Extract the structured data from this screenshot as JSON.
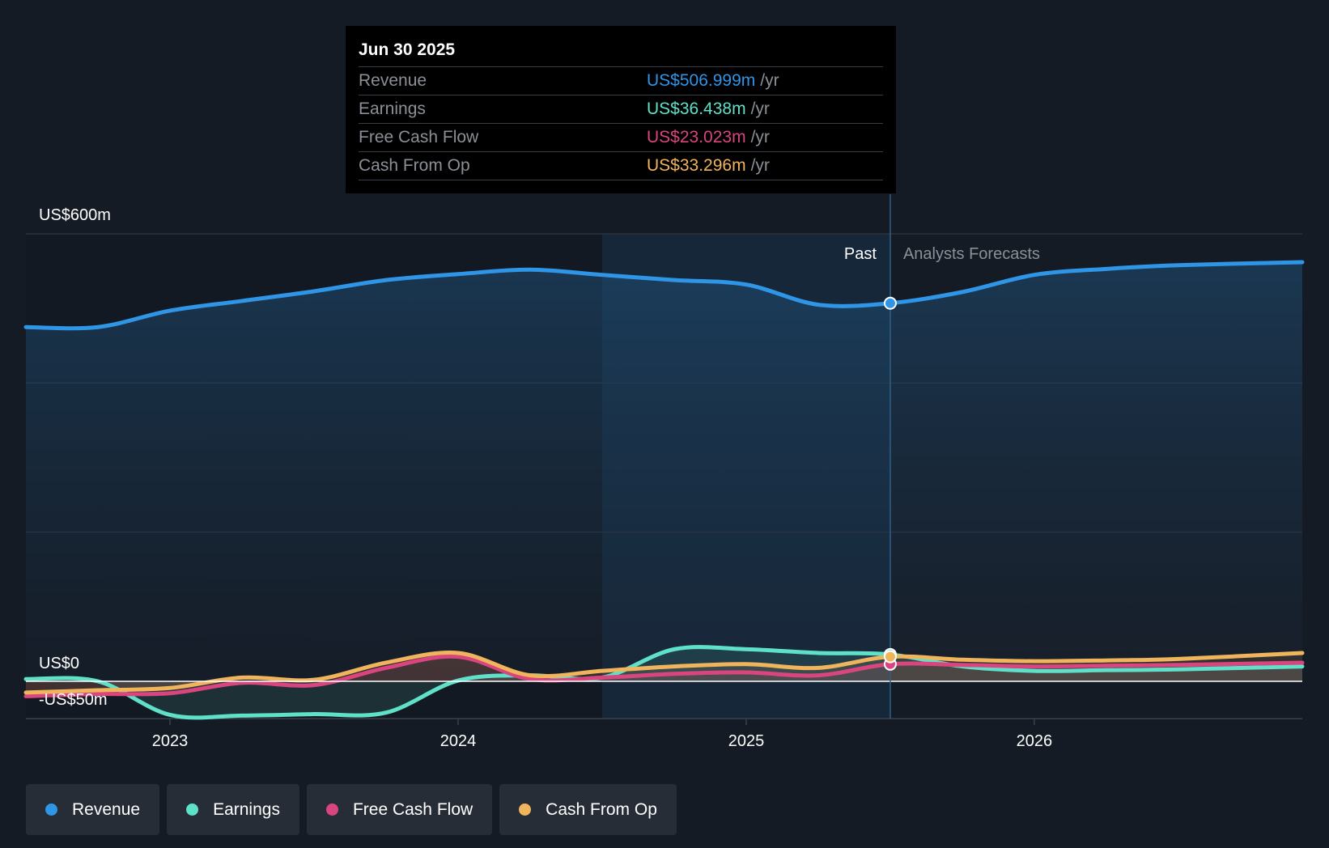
{
  "tooltip": {
    "date": "Jun 30 2025",
    "rows": [
      {
        "label": "Revenue",
        "value": "US$506.999m",
        "unit": "/yr",
        "color": "#2f95e6"
      },
      {
        "label": "Earnings",
        "value": "US$36.438m",
        "unit": "/yr",
        "color": "#5fe0c8"
      },
      {
        "label": "Free Cash Flow",
        "value": "US$23.023m",
        "unit": "/yr",
        "color": "#d9467f"
      },
      {
        "label": "Cash From Op",
        "value": "US$33.296m",
        "unit": "/yr",
        "color": "#f0b45d"
      }
    ]
  },
  "legend": [
    {
      "label": "Revenue",
      "color": "#2f95e6"
    },
    {
      "label": "Earnings",
      "color": "#5fe0c8"
    },
    {
      "label": "Free Cash Flow",
      "color": "#d9467f"
    },
    {
      "label": "Cash From Op",
      "color": "#f0b45d"
    }
  ],
  "chart_data": {
    "type": "line",
    "title": "",
    "xlabel": "",
    "ylabel": "",
    "xlim": [
      2022.5,
      2026.93
    ],
    "ylim": [
      -50,
      600
    ],
    "y_tick_labels": [
      {
        "value": 600,
        "label": "US$600m"
      },
      {
        "value": 0,
        "label": "US$0"
      },
      {
        "value": -50,
        "label": "-US$50m"
      }
    ],
    "x_ticks": [
      {
        "value": 2023.0,
        "label": "2023"
      },
      {
        "value": 2024.0,
        "label": "2024"
      },
      {
        "value": 2025.0,
        "label": "2025"
      },
      {
        "value": 2026.0,
        "label": "2026"
      }
    ],
    "highlight_range": [
      2024.5,
      2025.5
    ],
    "divider_x": 2025.5,
    "past_label": "Past",
    "forecast_label": "Analysts Forecasts",
    "series": [
      {
        "name": "Revenue",
        "color": "#2f95e6",
        "past_until": 2025.5,
        "x": [
          2022.5,
          2022.75,
          2023.0,
          2023.25,
          2023.5,
          2023.75,
          2024.0,
          2024.25,
          2024.5,
          2024.75,
          2025.0,
          2025.25,
          2025.5,
          2025.75,
          2026.0,
          2026.25,
          2026.5,
          2026.93
        ],
        "values": [
          475,
          475,
          497,
          510,
          523,
          538,
          546,
          552,
          545,
          538,
          532,
          505,
          507,
          522,
          545,
          553,
          558,
          562
        ]
      },
      {
        "name": "Earnings",
        "color": "#5fe0c8",
        "past_until": 2025.5,
        "x": [
          2022.5,
          2022.75,
          2023.0,
          2023.25,
          2023.5,
          2023.75,
          2024.0,
          2024.25,
          2024.5,
          2024.75,
          2025.0,
          2025.25,
          2025.5,
          2025.75,
          2026.0,
          2026.25,
          2026.5,
          2026.93
        ],
        "values": [
          3,
          0,
          -45,
          -46,
          -44,
          -42,
          1,
          8,
          5,
          43,
          43,
          38,
          36,
          20,
          14,
          15,
          16,
          20
        ]
      },
      {
        "name": "Free Cash Flow",
        "color": "#d9467f",
        "past_until": 2025.5,
        "x": [
          2022.5,
          2022.75,
          2023.0,
          2023.25,
          2023.5,
          2023.75,
          2024.0,
          2024.25,
          2024.5,
          2024.75,
          2025.0,
          2025.25,
          2025.5,
          2025.75,
          2026.0,
          2026.25,
          2026.5,
          2026.93
        ],
        "values": [
          -20,
          -17,
          -16,
          -2,
          -5,
          18,
          33,
          3,
          5,
          10,
          12,
          8,
          23,
          22,
          20,
          21,
          22,
          25
        ]
      },
      {
        "name": "Cash From Op",
        "color": "#f0b45d",
        "past_until": 2025.5,
        "x": [
          2022.5,
          2022.75,
          2023.0,
          2023.25,
          2023.5,
          2023.75,
          2024.0,
          2024.25,
          2024.5,
          2024.75,
          2025.0,
          2025.25,
          2025.5,
          2025.75,
          2026.0,
          2026.25,
          2026.5,
          2026.93
        ],
        "values": [
          -15,
          -12,
          -9,
          5,
          2,
          25,
          38,
          8,
          14,
          20,
          23,
          18,
          33,
          29,
          27,
          28,
          30,
          38
        ]
      }
    ]
  }
}
